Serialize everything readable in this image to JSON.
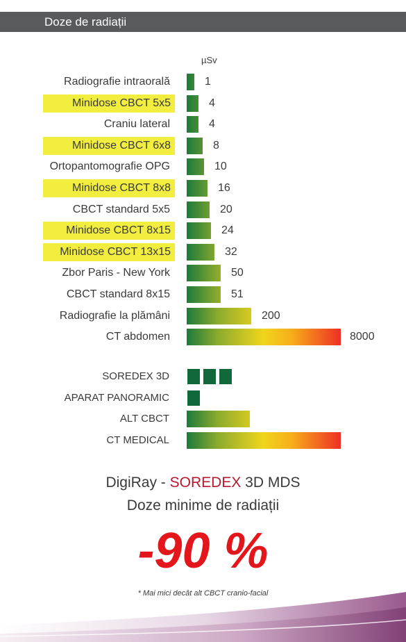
{
  "header": {
    "title": "Doze de radiații"
  },
  "chart_data": {
    "type": "bar",
    "orientation": "horizontal",
    "unit": "µSv",
    "categories": [
      "Radiografie intraorală",
      "Minidose CBCT 5x5",
      "Craniu lateral",
      "Minidose CBCT 6x8",
      "Ortopantomografie OPG",
      "Minidose CBCT 8x8",
      "CBCT standard 5x5",
      "Minidose CBCT 8x15",
      "Minidose CBCT 13x15",
      "Zbor Paris - New York",
      "CBCT standard 8x15",
      "Radiografie la plămâni",
      "CT abdomen"
    ],
    "values": [
      1,
      4,
      4,
      8,
      10,
      16,
      20,
      24,
      32,
      50,
      51,
      200,
      8000
    ],
    "value_labels": [
      "1",
      "4",
      "4",
      "8",
      "10",
      "16",
      "20",
      "24",
      "32",
      "50",
      "51",
      "200",
      "8000"
    ],
    "highlighted": [
      false,
      true,
      false,
      true,
      false,
      true,
      false,
      true,
      true,
      false,
      false,
      false,
      false
    ],
    "highlight_color": "#f2ee3f",
    "gradient_colors": [
      "#1d7a3b",
      "#8cab2d",
      "#f0d51c",
      "#f6b01a",
      "#ee2a24"
    ]
  },
  "comparison": {
    "items": [
      {
        "label": "SOREDEX 3D",
        "kind": "blocks",
        "blocks": 3
      },
      {
        "label": "APARAT PANORAMIC",
        "kind": "blocks",
        "blocks": 1
      },
      {
        "label": "ALT CBCT",
        "kind": "bar",
        "fraction": 0.41
      },
      {
        "label": "CT MEDICAL",
        "kind": "bar",
        "fraction": 1.0
      }
    ],
    "block_color": "#11683a"
  },
  "footer": {
    "brand_prefix": "DigiRay - ",
    "brand": "SOREDEX",
    "brand_suffix": " 3D MDS",
    "subtitle": "Doze minime de radiații",
    "big_number": "-90 %",
    "footnote": "* Mai mici decât alt CBCT cranio-facial",
    "brand_color": "#b8182e",
    "big_number_color": "#e3161b"
  }
}
